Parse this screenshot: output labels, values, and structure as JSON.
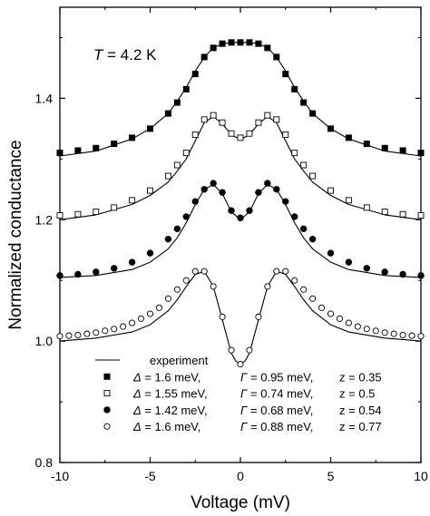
{
  "chart_data": {
    "type": "scatter",
    "xlabel": "Voltage (mV)",
    "ylabel": "Normalized conductance",
    "xlim": [
      -10,
      10
    ],
    "ylim": [
      0.8,
      1.55
    ],
    "x_ticks": [
      -10,
      -5,
      0,
      5,
      10
    ],
    "y_ticks": [
      0.8,
      1.0,
      1.2,
      1.4
    ],
    "x_tick_labels": [
      "-10",
      "-5",
      "0",
      "5",
      "10"
    ],
    "y_tick_labels": [
      "0.8",
      "1.0",
      "1.2",
      "1.4"
    ],
    "grid": false,
    "annotation": {
      "var": "T",
      "text": " = 4.2 K"
    },
    "legend_position": "bottom-left",
    "legend": [
      {
        "marker": "line",
        "label": "experiment"
      },
      {
        "marker": "filled-square",
        "delta": "1.6 meV,",
        "gamma": "0.95 meV,",
        "z": "z = 0.35"
      },
      {
        "marker": "open-square",
        "delta": "1.55 meV,",
        "gamma": "0.74 meV,",
        "z": "z = 0.5"
      },
      {
        "marker": "filled-circle",
        "delta": "1.42 meV,",
        "gamma": "0.68 meV,",
        "z": "z = 0.54"
      },
      {
        "marker": "open-circle",
        "delta": "1.6 meV,",
        "gamma": "0.88 meV,",
        "z": "z = 0.77"
      }
    ],
    "symbols": {
      "delta": "Δ",
      "gamma": "Γ",
      "eq": " = "
    },
    "series": [
      {
        "marker": "filled-square",
        "kind": "fit",
        "x": [
          -10,
          -9,
          -8,
          -7,
          -6,
          -5,
          -4,
          -3.5,
          -3,
          -2.5,
          -2,
          -1.5,
          -1,
          -0.5,
          0,
          0.5,
          1,
          1.5,
          2,
          2.5,
          3,
          3.5,
          4,
          5,
          6,
          7,
          8,
          9,
          10
        ],
        "y": [
          1.31,
          1.314,
          1.318,
          1.325,
          1.335,
          1.35,
          1.375,
          1.393,
          1.415,
          1.44,
          1.468,
          1.483,
          1.49,
          1.492,
          1.492,
          1.492,
          1.49,
          1.483,
          1.468,
          1.44,
          1.415,
          1.393,
          1.375,
          1.35,
          1.335,
          1.325,
          1.318,
          1.314,
          1.31
        ]
      },
      {
        "marker": "open-square",
        "kind": "fit",
        "x": [
          -10,
          -9,
          -8,
          -7,
          -6,
          -5,
          -4,
          -3.5,
          -3,
          -2.5,
          -2,
          -1.5,
          -1,
          -0.5,
          0,
          0.5,
          1,
          1.5,
          2,
          2.5,
          3,
          3.5,
          4,
          5,
          6,
          7,
          8,
          9,
          10
        ],
        "y": [
          1.207,
          1.209,
          1.213,
          1.22,
          1.232,
          1.248,
          1.272,
          1.29,
          1.31,
          1.34,
          1.365,
          1.372,
          1.36,
          1.342,
          1.335,
          1.342,
          1.36,
          1.372,
          1.365,
          1.34,
          1.31,
          1.29,
          1.272,
          1.248,
          1.232,
          1.22,
          1.213,
          1.209,
          1.207
        ]
      },
      {
        "marker": "filled-circle",
        "kind": "fit",
        "x": [
          -10,
          -9,
          -8,
          -7,
          -6,
          -5,
          -4,
          -3.5,
          -3,
          -2.5,
          -2,
          -1.5,
          -1,
          -0.5,
          0,
          0.5,
          1,
          1.5,
          2,
          2.5,
          3,
          3.5,
          4,
          5,
          6,
          7,
          8,
          9,
          10
        ],
        "y": [
          1.108,
          1.11,
          1.114,
          1.12,
          1.13,
          1.145,
          1.168,
          1.185,
          1.205,
          1.23,
          1.25,
          1.26,
          1.245,
          1.215,
          1.203,
          1.215,
          1.245,
          1.26,
          1.25,
          1.23,
          1.205,
          1.185,
          1.168,
          1.145,
          1.13,
          1.12,
          1.114,
          1.11,
          1.108
        ]
      },
      {
        "marker": "open-circle",
        "kind": "fit",
        "x": [
          -10,
          -9.5,
          -9,
          -8.5,
          -8,
          -7.5,
          -7,
          -6.5,
          -6,
          -5.5,
          -5,
          -4.5,
          -4,
          -3.5,
          -3,
          -2.5,
          -2,
          -1.5,
          -1,
          -0.5,
          0,
          0.5,
          1,
          1.5,
          2,
          2.5,
          3,
          3.5,
          4,
          4.5,
          5,
          5.5,
          6,
          6.5,
          7,
          7.5,
          8,
          8.5,
          9,
          9.5,
          10
        ],
        "y": [
          1.008,
          1.009,
          1.01,
          1.012,
          1.014,
          1.017,
          1.02,
          1.024,
          1.03,
          1.037,
          1.045,
          1.055,
          1.07,
          1.085,
          1.1,
          1.115,
          1.115,
          1.09,
          1.04,
          0.985,
          0.962,
          0.985,
          1.04,
          1.09,
          1.115,
          1.115,
          1.1,
          1.085,
          1.07,
          1.055,
          1.045,
          1.037,
          1.03,
          1.024,
          1.02,
          1.017,
          1.014,
          1.012,
          1.01,
          1.009,
          1.008
        ]
      },
      {
        "marker": "line",
        "kind": "experiment",
        "x": [
          -10,
          -8,
          -6,
          -5,
          -4,
          -3.5,
          -3,
          -2.5,
          -2,
          -1.5,
          -1,
          -0.5,
          0,
          0.5,
          1,
          1.5,
          2,
          2.5,
          3,
          3.5,
          4,
          5,
          6,
          8,
          10
        ],
        "y": [
          1.305,
          1.313,
          1.333,
          1.35,
          1.375,
          1.395,
          1.418,
          1.445,
          1.468,
          1.483,
          1.49,
          1.492,
          1.492,
          1.492,
          1.49,
          1.483,
          1.468,
          1.445,
          1.418,
          1.395,
          1.375,
          1.35,
          1.333,
          1.313,
          1.305
        ]
      },
      {
        "marker": "line",
        "kind": "experiment",
        "x": [
          -10,
          -8,
          -6,
          -5,
          -4,
          -3.5,
          -3,
          -2.5,
          -2,
          -1.5,
          -1,
          -0.5,
          0,
          0.5,
          1,
          1.5,
          2,
          2.5,
          3,
          3.5,
          4,
          5,
          6,
          8,
          10
        ],
        "y": [
          1.2,
          1.208,
          1.225,
          1.24,
          1.262,
          1.28,
          1.3,
          1.33,
          1.36,
          1.37,
          1.358,
          1.34,
          1.332,
          1.34,
          1.358,
          1.37,
          1.36,
          1.33,
          1.3,
          1.28,
          1.262,
          1.24,
          1.225,
          1.208,
          1.2
        ]
      },
      {
        "marker": "line",
        "kind": "experiment",
        "x": [
          -10,
          -8,
          -6,
          -5,
          -4,
          -3.5,
          -3,
          -2.5,
          -2,
          -1.5,
          -1,
          -0.5,
          0,
          0.5,
          1,
          1.5,
          2,
          2.5,
          3,
          3.5,
          4,
          5,
          6,
          8,
          10
        ],
        "y": [
          1.105,
          1.108,
          1.118,
          1.13,
          1.152,
          1.17,
          1.195,
          1.225,
          1.25,
          1.258,
          1.243,
          1.213,
          1.2,
          1.213,
          1.243,
          1.258,
          1.25,
          1.225,
          1.195,
          1.17,
          1.152,
          1.13,
          1.118,
          1.108,
          1.105
        ]
      },
      {
        "marker": "line",
        "kind": "experiment",
        "x": [
          -10,
          -8,
          -6,
          -5,
          -4,
          -3.5,
          -3,
          -2.5,
          -2,
          -1.5,
          -1,
          -0.5,
          -0.25,
          0,
          0.25,
          0.5,
          1,
          1.5,
          2,
          2.5,
          3,
          3.5,
          4,
          5,
          6,
          8,
          10
        ],
        "y": [
          1.0,
          1.005,
          1.015,
          1.027,
          1.05,
          1.068,
          1.09,
          1.11,
          1.115,
          1.09,
          1.035,
          0.98,
          0.967,
          0.962,
          0.967,
          0.98,
          1.035,
          1.09,
          1.115,
          1.11,
          1.09,
          1.068,
          1.05,
          1.027,
          1.015,
          1.005,
          1.0
        ]
      }
    ]
  }
}
